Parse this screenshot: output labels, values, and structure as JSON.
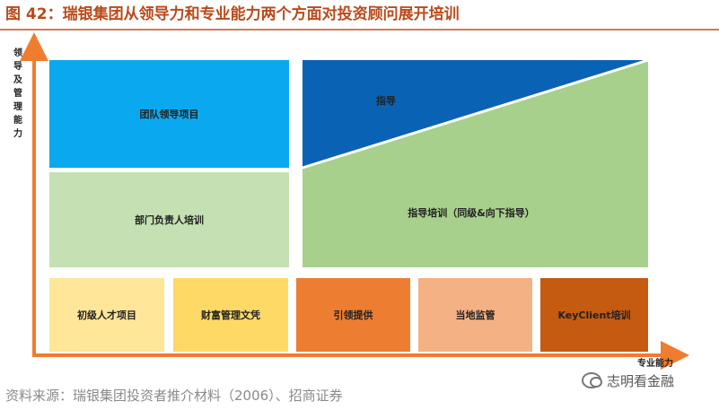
{
  "title": "图 42：瑞银集团从领导力和专业能力两个方面对投资顾问展开培训",
  "axes": {
    "y_label": "领导及管理能力",
    "x_label": "专业能力"
  },
  "colors": {
    "team_leadership": "#0aa9ef",
    "guidance": "#0a62b5",
    "green_dark": "#a8d08d",
    "green_light": "#c5e0b3",
    "pale_yellow": "#ffe699",
    "yellow": "#ffd966",
    "orange": "#ed7d31",
    "light_orange": "#f4b183",
    "dark_orange": "#c55a11",
    "axis": "#f07c2e"
  },
  "blocks": {
    "team_leadership": "团队领导项目",
    "dept_head_training": "部门负责人培训",
    "guidance": "指导",
    "guidance_training": "指导培训（同级&向下指导）",
    "bottom": [
      "初级人才项目",
      "财富管理文凭",
      "引领提供",
      "当地监管",
      "KeyClient培训"
    ]
  },
  "footer": "资料来源：瑞银集团投资者推介材料（2006）、招商证券",
  "watermark": "志明看金融"
}
